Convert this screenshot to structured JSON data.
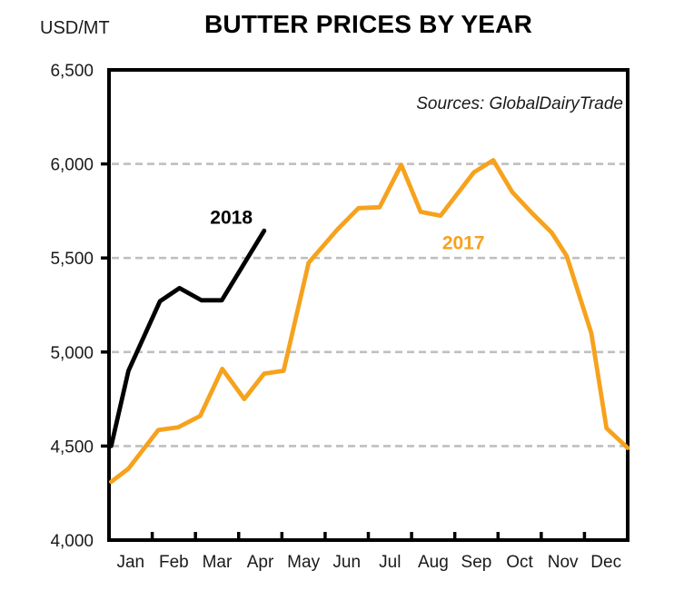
{
  "header": {
    "unit_label": "USD/MT",
    "title": "BUTTER PRICES BY YEAR"
  },
  "annotation": {
    "sources": "Sources: GlobalDairyTrade"
  },
  "chart_data": {
    "type": "line",
    "title": "BUTTER PRICES BY YEAR",
    "ylabel": "USD/MT",
    "xlabel": "",
    "ylim": [
      4000,
      6500
    ],
    "xlim_months": [
      0,
      12
    ],
    "grid": "dashed horizontal gridlines at 500 intervals",
    "legend": "inline series labels near lines",
    "x_categories": [
      "Jan",
      "Feb",
      "Mar",
      "Apr",
      "May",
      "Jun",
      "Jul",
      "Aug",
      "Sep",
      "Oct",
      "Nov",
      "Dec"
    ],
    "yticks": [
      {
        "value": 6500,
        "label": "6,500"
      },
      {
        "value": 6000,
        "label": "6,000"
      },
      {
        "value": 5500,
        "label": "5,500"
      },
      {
        "value": 5000,
        "label": "5,000"
      },
      {
        "value": 4500,
        "label": "4,500"
      },
      {
        "value": 4000,
        "label": "4,000"
      }
    ],
    "grid_values": [
      6000,
      5500,
      5000,
      4500
    ],
    "colors": {
      "frame": "#000000",
      "gridline": "#BFBFBF",
      "text": "#1a1a1a"
    },
    "series": [
      {
        "name": "2018",
        "color": "#000000",
        "label_pos": {
          "x": 2.83,
          "y": 5715
        },
        "points": [
          [
            0.05,
            4500
          ],
          [
            0.45,
            4900
          ],
          [
            1.18,
            5270
          ],
          [
            1.63,
            5340
          ],
          [
            2.14,
            5275
          ],
          [
            2.61,
            5275
          ],
          [
            3.59,
            5645
          ]
        ]
      },
      {
        "name": "2017",
        "color": "#F6A21D",
        "label_pos": {
          "x": 8.2,
          "y": 5580
        },
        "points": [
          [
            0.05,
            4310
          ],
          [
            0.45,
            4380
          ],
          [
            1.14,
            4585
          ],
          [
            1.6,
            4600
          ],
          [
            2.11,
            4660
          ],
          [
            2.62,
            4910
          ],
          [
            3.13,
            4750
          ],
          [
            3.59,
            4885
          ],
          [
            4.04,
            4900
          ],
          [
            4.62,
            5475
          ],
          [
            5.28,
            5650
          ],
          [
            5.77,
            5765
          ],
          [
            6.26,
            5770
          ],
          [
            6.76,
            5995
          ],
          [
            7.21,
            5745
          ],
          [
            7.67,
            5725
          ],
          [
            8.44,
            5955
          ],
          [
            8.89,
            6020
          ],
          [
            9.33,
            5850
          ],
          [
            9.78,
            5740
          ],
          [
            10.24,
            5635
          ],
          [
            10.59,
            5510
          ],
          [
            11.16,
            5100
          ],
          [
            11.51,
            4595
          ],
          [
            12.0,
            4490
          ]
        ]
      }
    ]
  }
}
